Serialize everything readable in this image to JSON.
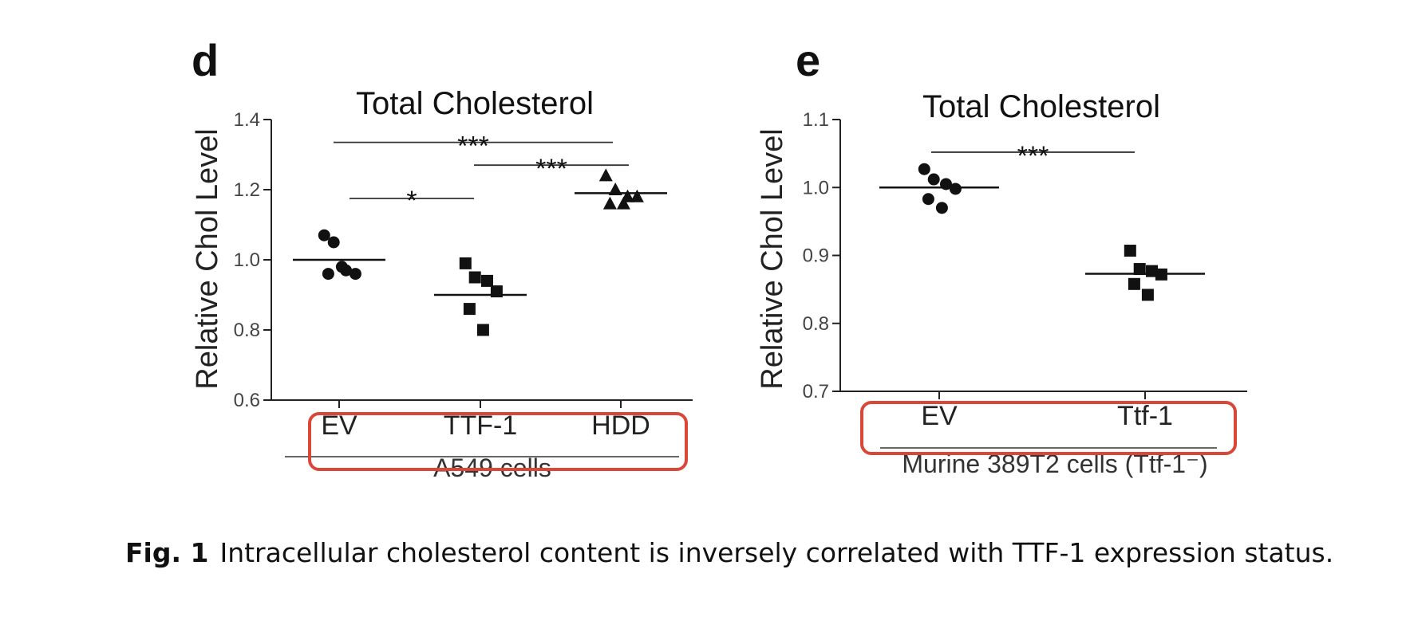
{
  "chart_data": [
    {
      "panel": "d",
      "type": "scatter",
      "title": "Total Cholesterol",
      "ylabel": "Relative Chol Level",
      "ylim": [
        0.6,
        1.4
      ],
      "yticks": [
        "0.6",
        "0.8",
        "1.0",
        "1.2",
        "1.4"
      ],
      "categories": [
        "EV",
        "TTF-1",
        "HDD"
      ],
      "group_label": "A549 cells",
      "markers": [
        "circle",
        "square",
        "triangle"
      ],
      "points": [
        [
          1.07,
          1.05,
          0.97,
          0.96,
          0.96,
          0.98
        ],
        [
          0.99,
          0.95,
          0.94,
          0.91,
          0.86,
          0.8
        ],
        [
          1.24,
          1.2,
          1.18,
          1.18,
          1.16,
          1.16
        ]
      ],
      "means": [
        1.0,
        0.9,
        1.19
      ],
      "significance": [
        {
          "from": 0,
          "to": 2,
          "y": 1.335,
          "label": "***"
        },
        {
          "from": 1,
          "to": 2,
          "y": 1.27,
          "label": "***"
        },
        {
          "from": 0,
          "to": 1,
          "y": 1.175,
          "label": "*"
        }
      ],
      "grid": false,
      "highlight_color": "#d9473a"
    },
    {
      "panel": "e",
      "type": "scatter",
      "title": "Total Cholesterol",
      "ylabel": "Relative Chol Level",
      "ylim": [
        0.7,
        1.1
      ],
      "yticks": [
        "0.7",
        "0.8",
        "0.9",
        "1.0",
        "1.1"
      ],
      "categories": [
        "EV",
        "Ttf-1"
      ],
      "group_label": "Murine 389T2 cells (Ttf-1⁻)",
      "markers": [
        "circle",
        "square"
      ],
      "points": [
        [
          1.027,
          1.012,
          1.005,
          0.998,
          0.983,
          0.97
        ],
        [
          0.907,
          0.88,
          0.877,
          0.872,
          0.858,
          0.842
        ]
      ],
      "means": [
        1.0,
        0.873
      ],
      "significance": [
        {
          "from": 0,
          "to": 1,
          "y": 1.052,
          "label": "***"
        }
      ],
      "grid": false,
      "highlight_color": "#d9473a"
    }
  ],
  "caption": {
    "label": "Fig. 1",
    "text": "Intracellular cholesterol content is inversely correlated with TTF-1 expression status."
  }
}
